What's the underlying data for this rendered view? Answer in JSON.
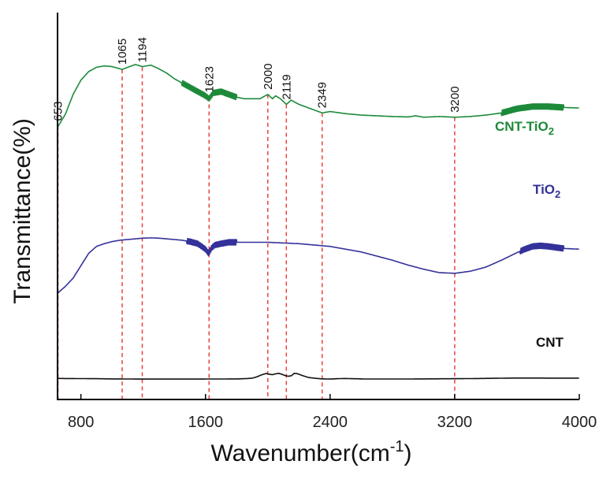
{
  "chart_data": {
    "type": "line",
    "xlabel": "Wavenumber(cm",
    "xlabel_sup": "-1",
    "xlabel_tail": ")",
    "ylabel": "Transmittance(%)",
    "xlim": [
      650,
      4000
    ],
    "ylim": [
      0,
      100
    ],
    "x_ticks": [
      800,
      1600,
      2400,
      3200,
      4000
    ],
    "x_tick_labels": [
      "800",
      "1600",
      "2400",
      "3200",
      "4000"
    ],
    "y_ticks_shown": false,
    "grid": false,
    "legend": "none (labels next to curves)",
    "series": [
      {
        "name": "CNT-TiO",
        "name_sub": "2",
        "color": "#1d8a3a",
        "noise_ranges": [
          [
            1450,
            1800
          ],
          [
            3500,
            3900
          ]
        ],
        "x": [
          650,
          700,
          750,
          800,
          850,
          900,
          950,
          1000,
          1050,
          1065,
          1100,
          1150,
          1194,
          1250,
          1300,
          1350,
          1400,
          1450,
          1500,
          1550,
          1600,
          1623,
          1650,
          1700,
          1750,
          1800,
          1850,
          1900,
          1950,
          2000,
          2030,
          2050,
          2080,
          2119,
          2150,
          2200,
          2250,
          2300,
          2349,
          2400,
          2500,
          2600,
          2700,
          2800,
          2900,
          2950,
          3000,
          3100,
          3200,
          3300,
          3400,
          3500,
          3600,
          3700,
          3800,
          3900,
          4000
        ],
        "y": [
          55,
          64,
          78,
          88,
          94,
          97,
          98,
          97.5,
          96,
          95.5,
          97,
          99,
          97.5,
          98.5,
          96,
          93,
          89,
          86,
          83,
          80,
          77,
          75,
          79,
          80,
          78,
          76,
          75,
          75,
          75,
          78,
          75,
          77,
          75,
          71,
          74,
          71,
          69,
          67,
          65,
          66,
          64.5,
          63.5,
          63,
          62.5,
          62.2,
          63,
          62,
          62.5,
          62,
          62.5,
          63.5,
          65,
          68,
          69.5,
          69.5,
          68.8,
          68.5
        ]
      },
      {
        "name": "TiO",
        "name_sub": "2",
        "color": "#34319a",
        "noise_ranges": [
          [
            1480,
            1800
          ],
          [
            3620,
            3900
          ]
        ],
        "x": [
          650,
          700,
          750,
          800,
          850,
          900,
          950,
          1000,
          1050,
          1100,
          1150,
          1200,
          1250,
          1300,
          1350,
          1400,
          1450,
          1500,
          1550,
          1600,
          1620,
          1640,
          1660,
          1700,
          1750,
          1800,
          1900,
          2000,
          2100,
          2200,
          2300,
          2400,
          2500,
          2600,
          2700,
          2800,
          2900,
          3000,
          3100,
          3200,
          3300,
          3400,
          3500,
          3600,
          3650,
          3700,
          3750,
          3800,
          3900,
          4000
        ],
        "y": [
          21,
          26,
          32,
          41,
          50,
          55,
          57,
          58.5,
          59.5,
          60,
          60.5,
          61,
          61.2,
          61,
          60.5,
          60,
          59.5,
          58.5,
          57,
          53,
          50,
          54,
          56,
          57,
          58,
          58,
          58,
          58,
          57.5,
          57,
          56,
          55,
          53,
          51,
          48,
          45,
          41.5,
          38.5,
          36,
          35.5,
          37,
          40,
          45,
          50.5,
          53,
          55,
          55.5,
          55,
          53.5,
          53
        ]
      },
      {
        "name": "CNT",
        "name_sub": "",
        "color": "#111111",
        "noise_ranges": [],
        "x": [
          650,
          700,
          800,
          900,
          1000,
          1100,
          1200,
          1300,
          1400,
          1500,
          1600,
          1700,
          1800,
          1850,
          1900,
          1930,
          1960,
          1990,
          2010,
          2030,
          2050,
          2070,
          2090,
          2110,
          2130,
          2150,
          2170,
          2190,
          2220,
          2260,
          2300,
          2340,
          2380,
          2420,
          2460,
          2500,
          2540,
          2580,
          2620,
          2700,
          2800,
          2900,
          3000,
          3100,
          3200,
          3300,
          3400,
          3500,
          3550,
          3600,
          3700,
          3800,
          3900,
          4000
        ],
        "y": [
          7,
          6.5,
          6,
          5.5,
          4.5,
          4,
          3.5,
          3.5,
          3.5,
          3.5,
          3.8,
          4,
          4.5,
          5.5,
          8,
          15,
          25,
          32,
          28,
          26,
          30,
          33,
          28,
          22,
          18,
          20,
          33,
          31,
          22,
          12,
          8,
          5,
          4,
          4.5,
          6,
          6.5,
          5.5,
          5,
          4,
          4,
          4,
          4,
          4.5,
          5,
          5.5,
          6,
          7,
          8,
          8.5,
          9,
          9,
          8.5,
          8.5,
          8.5
        ]
      }
    ],
    "annotations": [
      {
        "x": 653,
        "label": "653",
        "y_top": 56
      },
      {
        "x": 1065,
        "label": "1065",
        "y_top": 95.5
      },
      {
        "x": 1194,
        "label": "1194",
        "y_top": 97
      },
      {
        "x": 1623,
        "label": "1623",
        "y_top": 76
      },
      {
        "x": 2000,
        "label": "2000",
        "y_top": 78
      },
      {
        "x": 2119,
        "label": "2119",
        "y_top": 71
      },
      {
        "x": 2349,
        "label": "2349",
        "y_top": 65
      },
      {
        "x": 3200,
        "label": "3200",
        "y_top": 62
      }
    ],
    "annotation_color": "#e8433a"
  }
}
